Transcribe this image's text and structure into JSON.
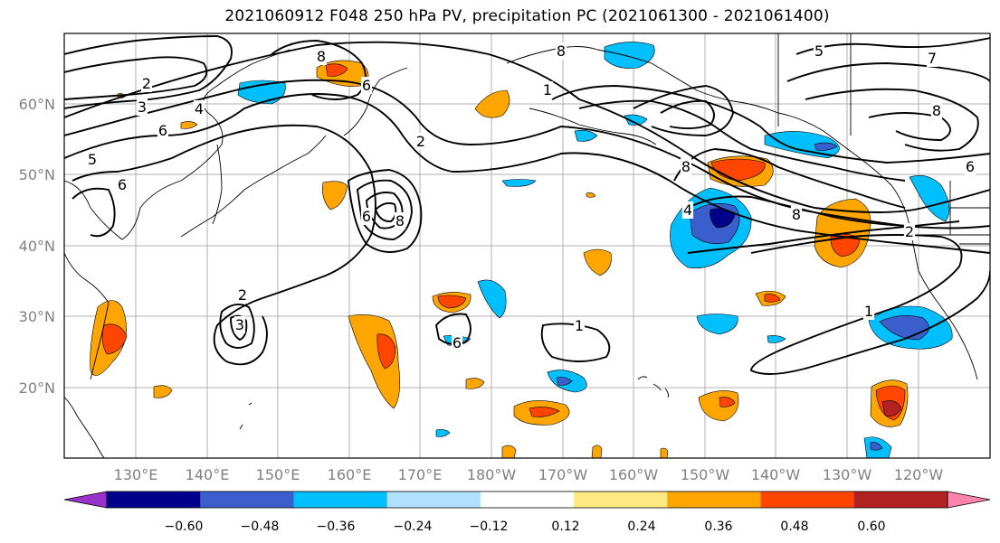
{
  "title": "2021060912 F048 250 hPa PV, precipitation PC (2021061300 - 2021061400)",
  "lat_labels": [
    "60°N",
    "50°N",
    "40°N",
    "30°N",
    "20°N"
  ],
  "lon_labels": [
    "130°E",
    "140°E",
    "150°E",
    "160°E",
    "170°E",
    "180°W",
    "170°W",
    "160°W",
    "150°W",
    "140°W",
    "130°W",
    "120°W"
  ],
  "colorbar": {
    "colors": [
      "#9932cc",
      "#00008b",
      "#3a5fcd",
      "#00bfff",
      "#b0e2ff",
      "#ffffff",
      "#ffe983",
      "#ffa500",
      "#ff4500",
      "#b22222",
      "#ff83ac"
    ],
    "tick_labels": [
      "−0.60",
      "−0.48",
      "−0.36",
      "−0.24",
      "−0.12",
      "0.12",
      "0.24",
      "0.36",
      "0.48",
      "0.60"
    ]
  },
  "contour_labels": [
    "8",
    "6",
    "4",
    "3",
    "2",
    "6",
    "5",
    "6",
    "2",
    "6",
    "8",
    "2",
    "3",
    "8",
    "1",
    "1",
    "8",
    "8",
    "2",
    "1",
    "5",
    "7",
    "6",
    "8",
    "4",
    "6"
  ],
  "colors": {
    "gray_text": "#808080",
    "grid": "#b0b0b0",
    "contour": "#000000"
  }
}
